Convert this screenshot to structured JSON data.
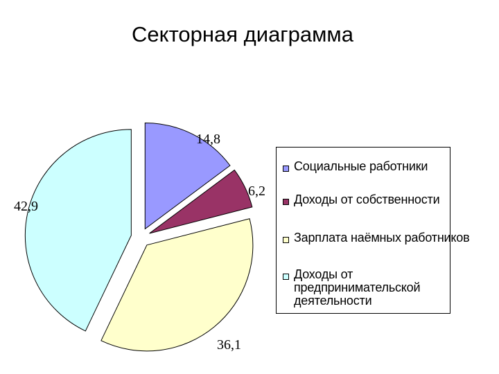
{
  "chart_data": {
    "type": "pie",
    "title": "Секторная диаграмма",
    "categories": [
      "Социальные работники",
      "Доходы от собственности",
      "Зарплата наёмных работников",
      "Доходы от предпринимательской деятельности"
    ],
    "values": [
      14.8,
      6.2,
      36.1,
      42.9
    ],
    "value_labels": [
      "14,8",
      "6,2",
      "36,1",
      "42,9"
    ],
    "colors": [
      "#9999FF",
      "#993366",
      "#FFFFCC",
      "#CCFFFF"
    ],
    "exploded": true,
    "legend": "right"
  }
}
